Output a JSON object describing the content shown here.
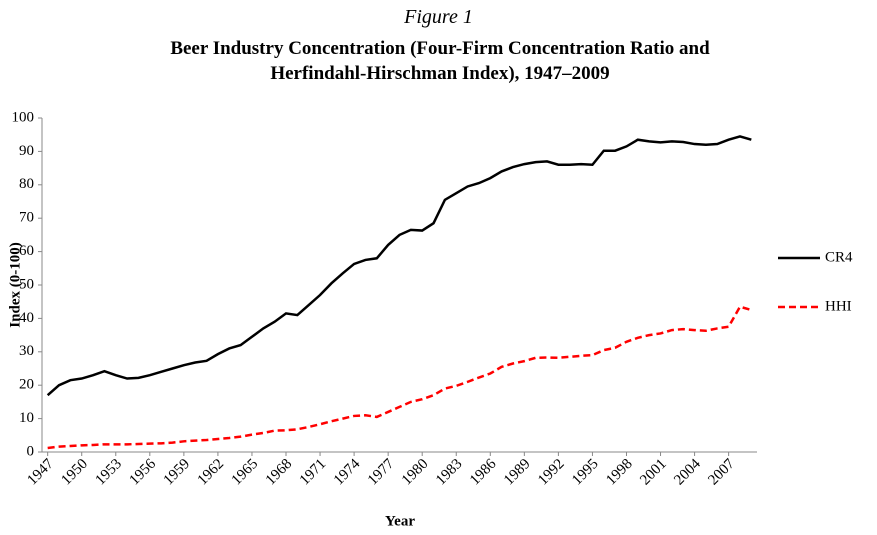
{
  "chart_data": {
    "type": "line",
    "subtitle": "Figure 1",
    "title": "Beer Industry Concentration (Four-Firm Concentration Ratio and Herfindahl-Hirschman Index), 1947–2009",
    "x_label": "Year",
    "y_label": "Index (0-100)",
    "x": [
      1947,
      1948,
      1949,
      1950,
      1951,
      1952,
      1953,
      1954,
      1955,
      1956,
      1957,
      1958,
      1959,
      1960,
      1961,
      1962,
      1963,
      1964,
      1965,
      1966,
      1967,
      1968,
      1969,
      1970,
      1971,
      1972,
      1973,
      1974,
      1975,
      1976,
      1977,
      1978,
      1979,
      1980,
      1981,
      1982,
      1983,
      1984,
      1985,
      1986,
      1987,
      1988,
      1989,
      1990,
      1991,
      1992,
      1993,
      1994,
      1995,
      1996,
      1997,
      1998,
      1999,
      2000,
      2001,
      2002,
      2003,
      2004,
      2005,
      2006,
      2007,
      2008,
      2009
    ],
    "series": [
      {
        "name": "CR4",
        "color": "#000000",
        "dashed": false,
        "values": [
          17,
          20,
          21.5,
          22,
          23,
          24.2,
          23,
          22,
          22.2,
          23,
          24,
          25,
          26,
          26.8,
          27.3,
          29.3,
          31,
          32,
          34.5,
          37,
          39,
          41.5,
          41,
          44,
          47,
          50.5,
          53.5,
          56.3,
          57.5,
          58,
          62,
          65,
          66.5,
          66.3,
          68.5,
          75.5,
          77.5,
          79.5,
          80.5,
          82,
          84,
          85.3,
          86.2,
          86.8,
          87,
          86,
          86,
          86.2,
          86,
          90.2,
          90.2,
          91.5,
          93.5,
          93,
          92.7,
          93,
          92.8,
          92.2,
          92,
          92.2,
          93.5,
          94.5,
          93.5
        ]
      },
      {
        "name": "HHI",
        "color": "#ff0000",
        "dashed": true,
        "values": [
          1.2,
          1.6,
          1.8,
          2,
          2.1,
          2.3,
          2.3,
          2.3,
          2.4,
          2.5,
          2.6,
          2.8,
          3.2,
          3.4,
          3.6,
          3.9,
          4.2,
          4.6,
          5.2,
          5.7,
          6.4,
          6.5,
          6.8,
          7.5,
          8.3,
          9.2,
          10,
          10.8,
          11,
          10.5,
          12,
          13.5,
          15,
          15.8,
          17,
          19,
          19.8,
          21,
          22.3,
          23.5,
          25.5,
          26.5,
          27.2,
          28.2,
          28.3,
          28.2,
          28.5,
          28.8,
          29,
          30.5,
          31.2,
          33,
          34.2,
          35,
          35.5,
          36.5,
          36.8,
          36.5,
          36.3,
          37,
          37.5,
          43.5,
          42.5
        ]
      }
    ],
    "xlim": [
      1946.5,
      2009.5
    ],
    "xticks": [
      1947,
      1950,
      1953,
      1956,
      1959,
      1962,
      1965,
      1968,
      1971,
      1974,
      1977,
      1980,
      1983,
      1986,
      1989,
      1992,
      1995,
      1998,
      2001,
      2004,
      2007
    ],
    "ylim": [
      0,
      100
    ],
    "yticks": [
      0,
      10,
      20,
      30,
      40,
      50,
      60,
      70,
      80,
      90,
      100
    ],
    "grid": false,
    "legend": "right"
  }
}
